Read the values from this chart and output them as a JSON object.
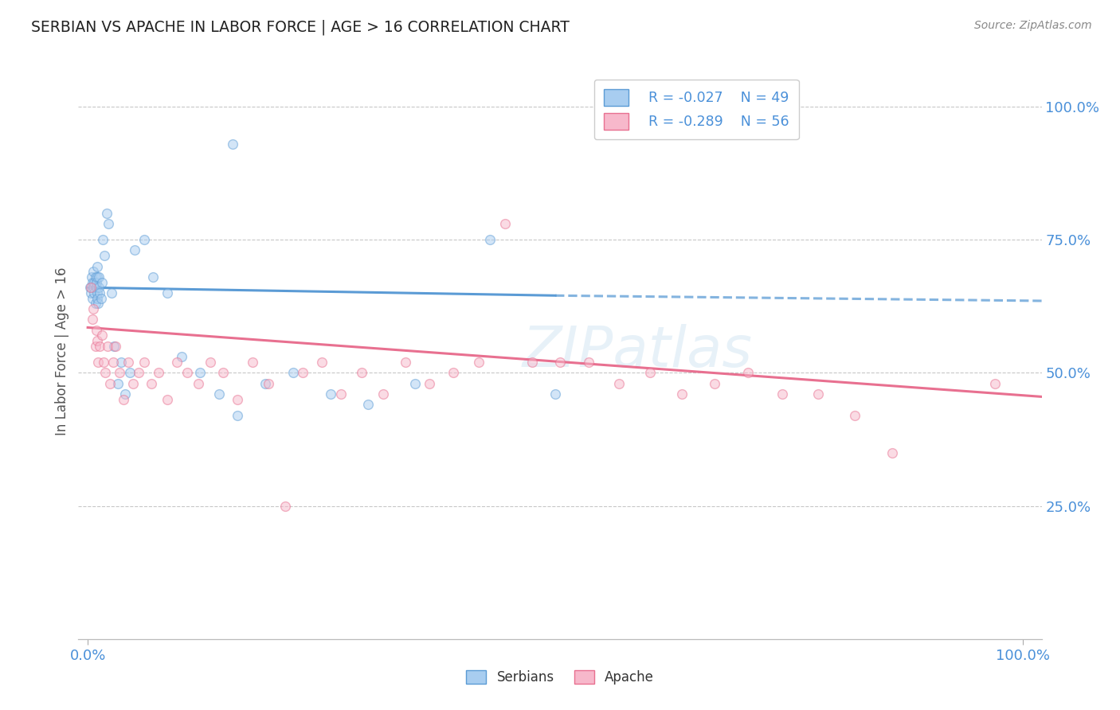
{
  "title": "SERBIAN VS APACHE IN LABOR FORCE | AGE > 16 CORRELATION CHART",
  "source": "Source: ZipAtlas.com",
  "ylabel": "In Labor Force | Age > 16",
  "xlim": [
    -0.01,
    1.02
  ],
  "ylim": [
    0.0,
    1.08
  ],
  "ytick_right_vals": [
    0.25,
    0.5,
    0.75,
    1.0
  ],
  "ytick_right_labels": [
    "25.0%",
    "50.0%",
    "75.0%",
    "100.0%"
  ],
  "xtick_vals": [
    0.0,
    1.0
  ],
  "xtick_labels": [
    "0.0%",
    "100.0%"
  ],
  "legend_r_serbian": "R = -0.027",
  "legend_n_serbian": "N = 49",
  "legend_r_apache": "R = -0.289",
  "legend_n_apache": "N = 56",
  "serbian_fill": "#a8cdf0",
  "apache_fill": "#f7b8cb",
  "serbian_edge": "#5b9bd5",
  "apache_edge": "#e87090",
  "serbian_line": "#5b9bd5",
  "apache_line": "#e87090",
  "background_color": "#ffffff",
  "grid_color": "#c8c8c8",
  "title_color": "#222222",
  "tick_color": "#4a90d9",
  "axis_label_color": "#555555",
  "watermark": "ZIPatlas",
  "marker_size": 72,
  "marker_alpha": 0.5,
  "line_width": 2.2,
  "serbian_trendline": [
    0.0,
    0.5,
    0.66,
    0.645
  ],
  "serbian_dashed_line": [
    0.5,
    1.02,
    0.645,
    0.635
  ],
  "apache_trendline": [
    0.0,
    1.02,
    0.585,
    0.455
  ],
  "serbian_x": [
    0.002,
    0.003,
    0.004,
    0.005,
    0.005,
    0.006,
    0.006,
    0.007,
    0.007,
    0.008,
    0.008,
    0.009,
    0.009,
    0.01,
    0.01,
    0.01,
    0.01,
    0.011,
    0.012,
    0.012,
    0.013,
    0.014,
    0.015,
    0.016,
    0.018,
    0.02,
    0.022,
    0.025,
    0.028,
    0.032,
    0.036,
    0.04,
    0.045,
    0.05,
    0.06,
    0.07,
    0.085,
    0.1,
    0.12,
    0.14,
    0.16,
    0.19,
    0.22,
    0.26,
    0.3,
    0.35,
    0.43,
    0.5,
    0.155
  ],
  "serbian_y": [
    0.66,
    0.65,
    0.68,
    0.67,
    0.64,
    0.69,
    0.66,
    0.67,
    0.65,
    0.68,
    0.63,
    0.66,
    0.67,
    0.65,
    0.68,
    0.64,
    0.7,
    0.63,
    0.66,
    0.68,
    0.65,
    0.64,
    0.67,
    0.75,
    0.72,
    0.8,
    0.78,
    0.65,
    0.55,
    0.48,
    0.52,
    0.46,
    0.5,
    0.73,
    0.75,
    0.68,
    0.65,
    0.53,
    0.5,
    0.46,
    0.42,
    0.48,
    0.5,
    0.46,
    0.44,
    0.48,
    0.75,
    0.46,
    0.93
  ],
  "apache_x": [
    0.003,
    0.005,
    0.006,
    0.008,
    0.009,
    0.01,
    0.011,
    0.013,
    0.015,
    0.017,
    0.019,
    0.021,
    0.024,
    0.027,
    0.03,
    0.034,
    0.038,
    0.043,
    0.048,
    0.054,
    0.06,
    0.068,
    0.076,
    0.085,
    0.095,
    0.106,
    0.118,
    0.131,
    0.145,
    0.16,
    0.176,
    0.193,
    0.211,
    0.23,
    0.25,
    0.271,
    0.293,
    0.316,
    0.34,
    0.365,
    0.391,
    0.418,
    0.446,
    0.475,
    0.505,
    0.536,
    0.568,
    0.601,
    0.635,
    0.67,
    0.706,
    0.743,
    0.781,
    0.82,
    0.86,
    0.97
  ],
  "apache_y": [
    0.66,
    0.6,
    0.62,
    0.55,
    0.58,
    0.56,
    0.52,
    0.55,
    0.57,
    0.52,
    0.5,
    0.55,
    0.48,
    0.52,
    0.55,
    0.5,
    0.45,
    0.52,
    0.48,
    0.5,
    0.52,
    0.48,
    0.5,
    0.45,
    0.52,
    0.5,
    0.48,
    0.52,
    0.5,
    0.45,
    0.52,
    0.48,
    0.25,
    0.5,
    0.52,
    0.46,
    0.5,
    0.46,
    0.52,
    0.48,
    0.5,
    0.52,
    0.78,
    0.52,
    0.52,
    0.52,
    0.48,
    0.5,
    0.46,
    0.48,
    0.5,
    0.46,
    0.46,
    0.42,
    0.35,
    0.48
  ]
}
